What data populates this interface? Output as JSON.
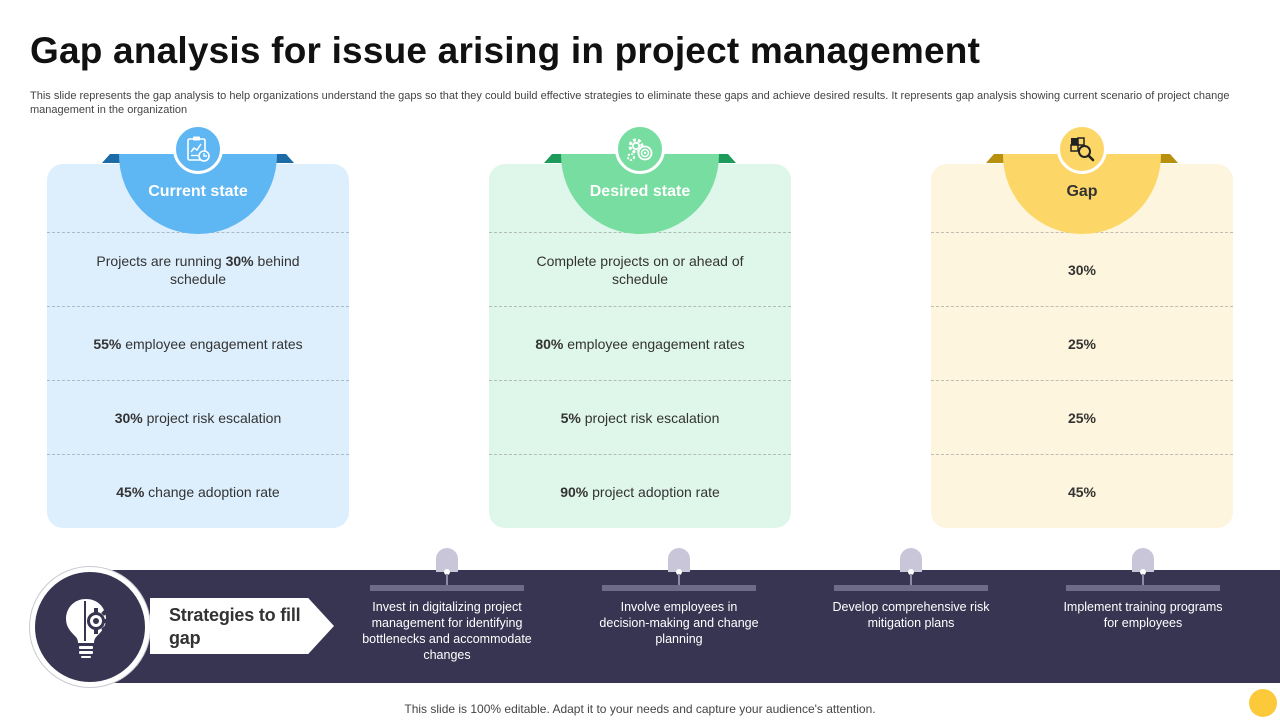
{
  "title": "Gap analysis for issue arising in project management",
  "subtitle": "This slide represents the gap analysis to help organizations understand the gaps so that they could build effective strategies to eliminate these gaps and achieve desired results. It represents gap analysis showing current scenario of  project change management in the organization",
  "colors": {
    "current_accent": "#5eb6f2",
    "desired_accent": "#77dda0",
    "gap_accent": "#fdd668",
    "band": "#373552"
  },
  "columns": {
    "current": {
      "label": "Current state",
      "icon": "clipboard-chart-icon",
      "rows": [
        {
          "pre": "Projects are running ",
          "bold": "30%",
          "post": " behind schedule"
        },
        {
          "pre": "",
          "bold": "55%",
          "post": " employee engagement rates"
        },
        {
          "pre": "",
          "bold": "30%",
          "post": " project risk escalation"
        },
        {
          "pre": "",
          "bold": "45%",
          "post": " change adoption rate"
        }
      ]
    },
    "desired": {
      "label": "Desired state",
      "icon": "gears-target-icon",
      "rows": [
        {
          "pre": "Complete projects on or ahead of schedule",
          "bold": "",
          "post": ""
        },
        {
          "pre": "",
          "bold": "80%",
          "post": " employee engagement rates"
        },
        {
          "pre": "",
          "bold": "5%",
          "post": " project risk escalation"
        },
        {
          "pre": "",
          "bold": "90%",
          "post": " project adoption rate"
        }
      ]
    },
    "gap": {
      "label": "Gap",
      "icon": "puzzle-magnifier-icon",
      "rows": [
        {
          "pre": "",
          "bold": "30%",
          "post": ""
        },
        {
          "pre": "",
          "bold": "25%",
          "post": ""
        },
        {
          "pre": "",
          "bold": "25%",
          "post": ""
        },
        {
          "pre": "",
          "bold": "45%",
          "post": ""
        }
      ]
    }
  },
  "strategies": {
    "heading": "Strategies to fill gap",
    "icon": "lightbulb-gear-icon",
    "items": [
      "Invest in digitalizing project management for identifying bottlenecks and accommodate changes",
      "Involve  employees in decision-making and change planning",
      "Develop comprehensive risk mitigation plans",
      "Implement training programs for employees"
    ]
  },
  "footer": "This slide is 100% editable. Adapt it to your needs and capture your audience's attention."
}
